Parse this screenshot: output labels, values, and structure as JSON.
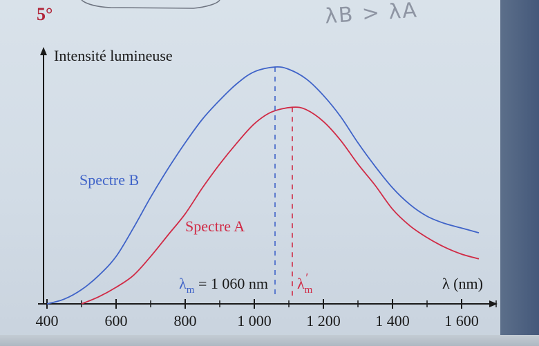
{
  "exercise": {
    "number": "5°",
    "handwritten_note": "λB > λA"
  },
  "chart_data": {
    "type": "line",
    "title": "",
    "ylabel": "Intensité lumineuse",
    "xlabel": "λ (nm)",
    "xlim": [
      400,
      1700
    ],
    "ylim": [
      0,
      1
    ],
    "x_ticks": [
      400,
      600,
      800,
      1000,
      1200,
      1400,
      1600
    ],
    "x_tick_labels": [
      "400",
      "600",
      "800",
      "1 000",
      "1 200",
      "1 400",
      "1 600"
    ],
    "colors": {
      "B": "#3f63c8",
      "A": "#d02a45",
      "axis": "#1a1a1a"
    },
    "series": [
      {
        "key": "B",
        "name": "Spectre B",
        "color": "#3f63c8",
        "x": [
          400,
          450,
          500,
          550,
          600,
          650,
          700,
          750,
          800,
          850,
          900,
          950,
          1000,
          1060,
          1100,
          1150,
          1200,
          1250,
          1300,
          1350,
          1400,
          1450,
          1500,
          1550,
          1600,
          1650
        ],
        "y": [
          0.0,
          0.02,
          0.06,
          0.12,
          0.2,
          0.32,
          0.45,
          0.57,
          0.68,
          0.78,
          0.86,
          0.93,
          0.98,
          1.0,
          0.99,
          0.95,
          0.88,
          0.79,
          0.68,
          0.58,
          0.49,
          0.42,
          0.37,
          0.34,
          0.32,
          0.3
        ]
      },
      {
        "key": "A",
        "name": "Spectre A",
        "color": "#d02a45",
        "x": [
          500,
          550,
          600,
          650,
          700,
          750,
          800,
          850,
          900,
          950,
          1000,
          1050,
          1110,
          1150,
          1200,
          1250,
          1300,
          1350,
          1400,
          1450,
          1500,
          1550,
          1600,
          1650
        ],
        "y": [
          0.0,
          0.03,
          0.07,
          0.12,
          0.2,
          0.29,
          0.38,
          0.49,
          0.59,
          0.68,
          0.76,
          0.81,
          0.83,
          0.82,
          0.77,
          0.69,
          0.59,
          0.5,
          0.4,
          0.33,
          0.28,
          0.24,
          0.21,
          0.19
        ]
      }
    ],
    "annotations": [
      {
        "key": "lambda_m",
        "series": "B",
        "x": 1060,
        "text_main": "λ",
        "text_sub": "m",
        "text_rest": " = 1 060 nm"
      },
      {
        "key": "lambda_m_prime",
        "series": "A",
        "x": 1110,
        "text_main": "λ",
        "text_sub": "m",
        "text_sup": "′"
      }
    ]
  }
}
